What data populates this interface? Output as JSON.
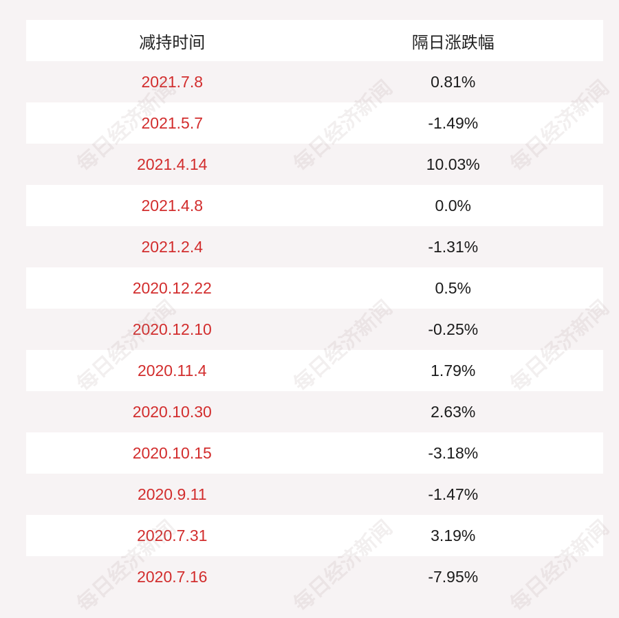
{
  "table": {
    "headers": {
      "date": "减持时间",
      "change": "隔日涨跌幅"
    },
    "rows": [
      {
        "date": "2021.7.8",
        "change": "0.81%"
      },
      {
        "date": "2021.5.7",
        "change": "-1.49%"
      },
      {
        "date": "2021.4.14",
        "change": "10.03%"
      },
      {
        "date": "2021.4.8",
        "change": "0.0%"
      },
      {
        "date": "2021.2.4",
        "change": "-1.31%"
      },
      {
        "date": "2020.12.22",
        "change": "0.5%"
      },
      {
        "date": "2020.12.10",
        "change": "-0.25%"
      },
      {
        "date": "2020.11.4",
        "change": "1.79%"
      },
      {
        "date": "2020.10.30",
        "change": "2.63%"
      },
      {
        "date": "2020.10.15",
        "change": "-3.18%"
      },
      {
        "date": "2020.9.11",
        "change": "-1.47%"
      },
      {
        "date": "2020.7.31",
        "change": "3.19%"
      },
      {
        "date": "2020.7.16",
        "change": "-7.95%"
      }
    ]
  },
  "watermark": {
    "text": "每日经济新闻"
  },
  "colors": {
    "date_text": "#d22d2d",
    "value_text": "#1a1a1a",
    "row_white": "#ffffff",
    "row_tint": "#f7f3f4"
  }
}
